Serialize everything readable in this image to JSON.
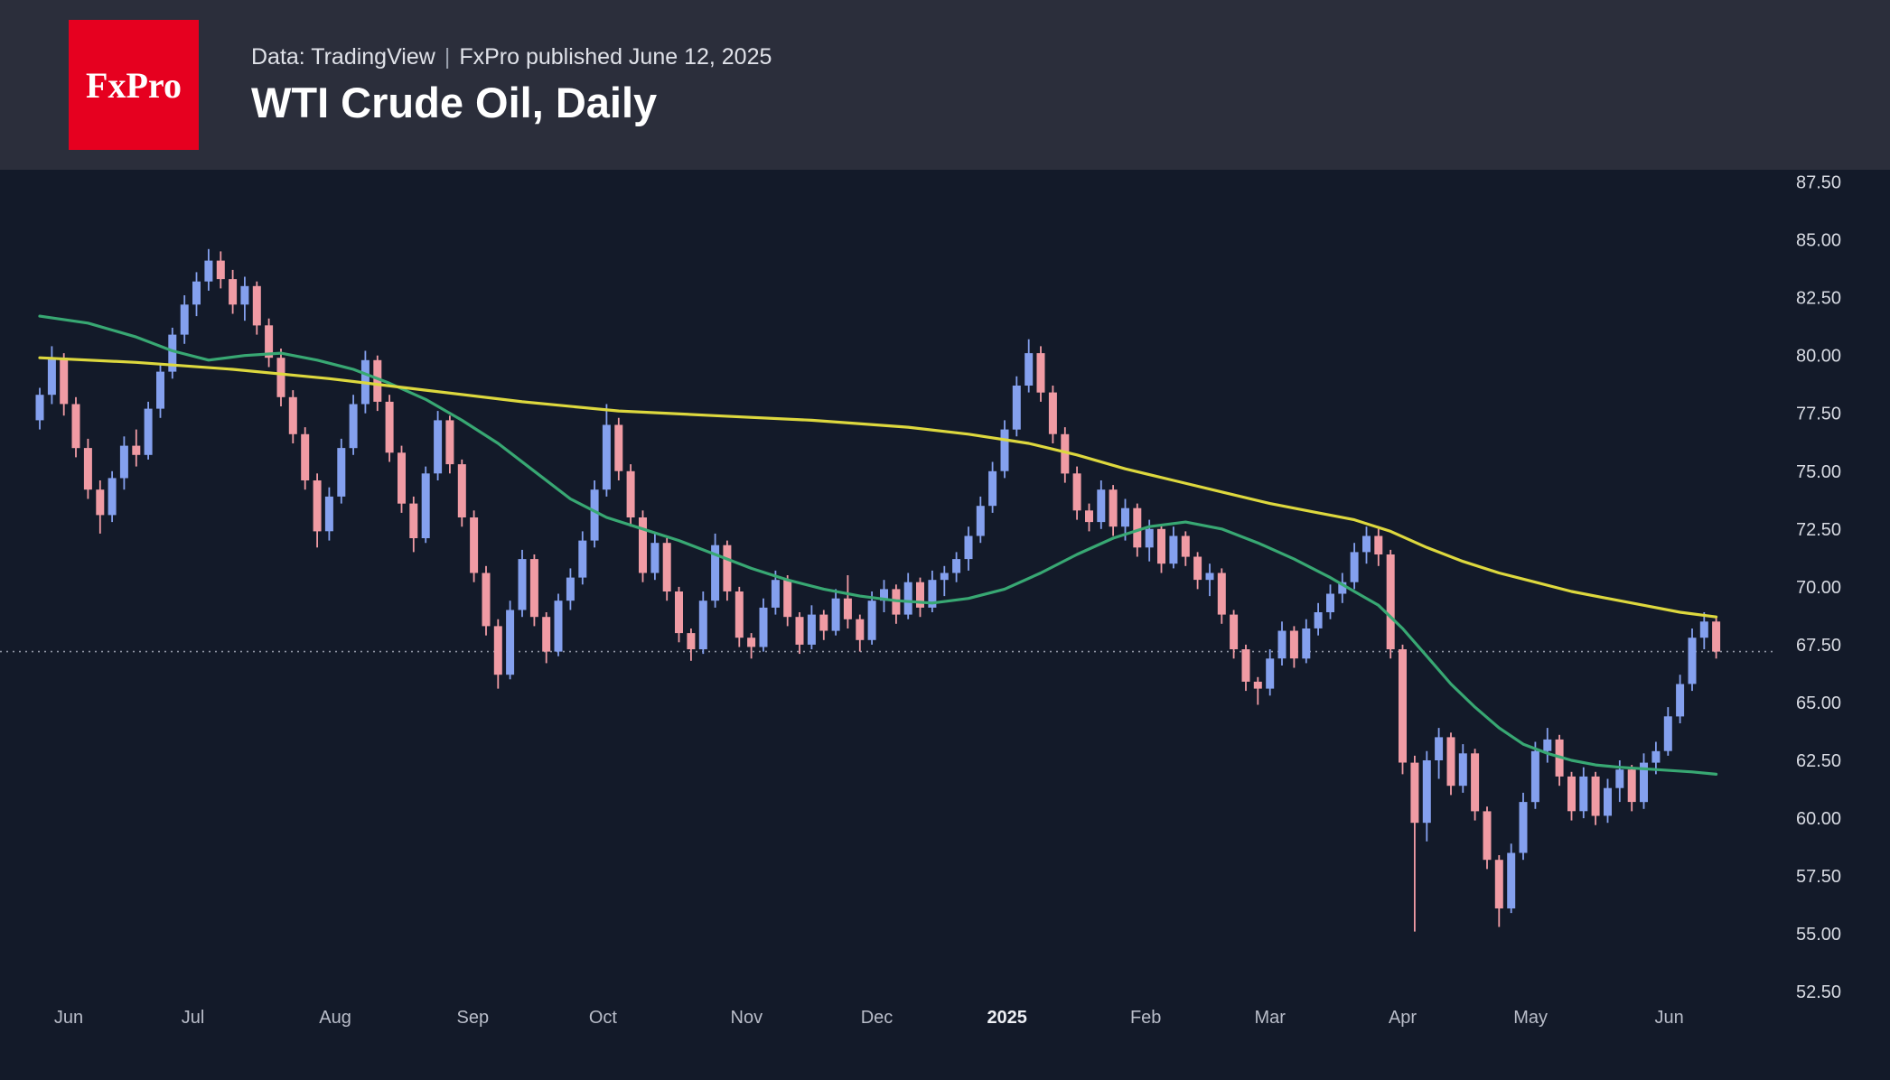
{
  "header": {
    "logo_text": "FxPro",
    "subtitle_source": "Data: TradingView",
    "subtitle_separator": "|",
    "subtitle_published": "FxPro published June 12, 2025",
    "title": "WTI Crude Oil, Daily"
  },
  "colors": {
    "header_bg": "#2b2e3b",
    "chart_bg": "#131a29",
    "logo_bg": "#e6001f",
    "candle_up": "#84a0ee",
    "candle_down": "#f09ba4",
    "ma_fast": "#38a873",
    "ma_slow": "#ddd83e",
    "last_price_line": "#8f94a3",
    "axis_text": "#d8dbe3",
    "time_text": "#b9bdc9",
    "time_text_emphasis": "#eef0f5"
  },
  "chart_data": {
    "type": "candlestick",
    "symbol": "WTI Crude Oil",
    "timeframe": "Daily",
    "title": "WTI Crude Oil, Daily",
    "ylim": [
      51.5,
      88.1
    ],
    "grid": false,
    "legend": false,
    "y_ticks": [
      "87.50",
      "85.00",
      "82.50",
      "80.00",
      "77.50",
      "75.00",
      "72.50",
      "70.00",
      "67.50",
      "65.00",
      "62.50",
      "60.00",
      "57.50",
      "55.00",
      "52.50"
    ],
    "x_ticks": [
      {
        "label": "Jun",
        "i": 2.4
      },
      {
        "label": "Jul",
        "i": 12.7
      },
      {
        "label": "Aug",
        "i": 24.5
      },
      {
        "label": "Sep",
        "i": 35.9
      },
      {
        "label": "Oct",
        "i": 46.7
      },
      {
        "label": "Nov",
        "i": 58.6
      },
      {
        "label": "Dec",
        "i": 69.4
      },
      {
        "label": "2025",
        "i": 80.2,
        "emphasis": true
      },
      {
        "label": "Feb",
        "i": 91.7
      },
      {
        "label": "Mar",
        "i": 102.0
      },
      {
        "label": "Apr",
        "i": 113.0
      },
      {
        "label": "May",
        "i": 123.6
      },
      {
        "label": "Jun",
        "i": 135.1
      }
    ],
    "last_price": 67.2,
    "ohlc": [
      [
        77.2,
        78.6,
        76.8,
        78.3
      ],
      [
        78.3,
        80.4,
        77.9,
        79.9
      ],
      [
        79.9,
        80.1,
        77.4,
        77.9
      ],
      [
        77.9,
        78.2,
        75.6,
        76.0
      ],
      [
        76.0,
        76.4,
        73.8,
        74.2
      ],
      [
        74.2,
        74.6,
        72.3,
        73.1
      ],
      [
        73.1,
        75.0,
        72.8,
        74.7
      ],
      [
        74.7,
        76.5,
        74.2,
        76.1
      ],
      [
        76.1,
        76.8,
        75.2,
        75.7
      ],
      [
        75.7,
        78.0,
        75.5,
        77.7
      ],
      [
        77.7,
        79.6,
        77.3,
        79.3
      ],
      [
        79.3,
        81.2,
        79.0,
        80.9
      ],
      [
        80.9,
        82.6,
        80.5,
        82.2
      ],
      [
        82.2,
        83.6,
        81.7,
        83.2
      ],
      [
        83.2,
        84.6,
        82.8,
        84.1
      ],
      [
        84.1,
        84.5,
        82.9,
        83.3
      ],
      [
        83.3,
        83.7,
        81.8,
        82.2
      ],
      [
        82.2,
        83.4,
        81.5,
        83.0
      ],
      [
        83.0,
        83.2,
        80.9,
        81.3
      ],
      [
        81.3,
        81.6,
        79.5,
        79.9
      ],
      [
        79.9,
        80.3,
        77.8,
        78.2
      ],
      [
        78.2,
        78.5,
        76.2,
        76.6
      ],
      [
        76.6,
        76.9,
        74.2,
        74.6
      ],
      [
        74.6,
        74.9,
        71.7,
        72.4
      ],
      [
        72.4,
        74.3,
        72.0,
        73.9
      ],
      [
        73.9,
        76.4,
        73.6,
        76.0
      ],
      [
        76.0,
        78.3,
        75.7,
        77.9
      ],
      [
        77.9,
        80.2,
        77.5,
        79.8
      ],
      [
        79.8,
        80.0,
        77.6,
        78.0
      ],
      [
        78.0,
        78.3,
        75.4,
        75.8
      ],
      [
        75.8,
        76.1,
        73.2,
        73.6
      ],
      [
        73.6,
        73.9,
        71.5,
        72.1
      ],
      [
        72.1,
        75.2,
        71.9,
        74.9
      ],
      [
        74.9,
        77.6,
        74.6,
        77.2
      ],
      [
        77.2,
        77.4,
        74.9,
        75.3
      ],
      [
        75.3,
        75.5,
        72.6,
        73.0
      ],
      [
        73.0,
        73.3,
        70.2,
        70.6
      ],
      [
        70.6,
        70.9,
        67.9,
        68.3
      ],
      [
        68.3,
        68.6,
        65.6,
        66.2
      ],
      [
        66.2,
        69.4,
        66.0,
        69.0
      ],
      [
        69.0,
        71.6,
        68.7,
        71.2
      ],
      [
        71.2,
        71.4,
        68.3,
        68.7
      ],
      [
        68.7,
        68.9,
        66.7,
        67.2
      ],
      [
        67.2,
        69.7,
        67.0,
        69.4
      ],
      [
        69.4,
        70.8,
        69.0,
        70.4
      ],
      [
        70.4,
        72.4,
        70.1,
        72.0
      ],
      [
        72.0,
        74.6,
        71.7,
        74.2
      ],
      [
        74.2,
        77.9,
        73.9,
        77.0
      ],
      [
        77.0,
        77.3,
        74.6,
        75.0
      ],
      [
        75.0,
        75.3,
        72.6,
        73.0
      ],
      [
        73.0,
        73.3,
        70.2,
        70.6
      ],
      [
        70.6,
        72.3,
        70.3,
        71.9
      ],
      [
        71.9,
        72.1,
        69.4,
        69.8
      ],
      [
        69.8,
        70.0,
        67.6,
        68.0
      ],
      [
        68.0,
        68.2,
        66.8,
        67.3
      ],
      [
        67.3,
        69.8,
        67.1,
        69.4
      ],
      [
        69.4,
        72.3,
        69.1,
        71.8
      ],
      [
        71.8,
        72.0,
        69.4,
        69.8
      ],
      [
        69.8,
        70.0,
        67.4,
        67.8
      ],
      [
        67.8,
        68.0,
        66.9,
        67.4
      ],
      [
        67.4,
        69.5,
        67.2,
        69.1
      ],
      [
        69.1,
        70.7,
        68.8,
        70.3
      ],
      [
        70.3,
        70.5,
        68.3,
        68.7
      ],
      [
        68.7,
        68.9,
        67.1,
        67.5
      ],
      [
        67.5,
        69.2,
        67.3,
        68.8
      ],
      [
        68.8,
        69.0,
        67.7,
        68.1
      ],
      [
        68.1,
        69.9,
        67.9,
        69.5
      ],
      [
        69.5,
        70.5,
        68.2,
        68.6
      ],
      [
        68.6,
        68.8,
        67.2,
        67.7
      ],
      [
        67.7,
        69.8,
        67.5,
        69.4
      ],
      [
        69.4,
        70.3,
        68.9,
        69.9
      ],
      [
        69.9,
        70.1,
        68.4,
        68.8
      ],
      [
        68.8,
        70.6,
        68.6,
        70.2
      ],
      [
        70.2,
        70.4,
        68.7,
        69.1
      ],
      [
        69.1,
        70.7,
        68.9,
        70.3
      ],
      [
        70.3,
        70.9,
        69.6,
        70.6
      ],
      [
        70.6,
        71.5,
        70.2,
        71.2
      ],
      [
        71.2,
        72.6,
        70.7,
        72.2
      ],
      [
        72.2,
        73.9,
        71.9,
        73.5
      ],
      [
        73.5,
        75.4,
        73.2,
        75.0
      ],
      [
        75.0,
        77.2,
        74.7,
        76.8
      ],
      [
        76.8,
        79.1,
        76.5,
        78.7
      ],
      [
        78.7,
        80.7,
        78.4,
        80.1
      ],
      [
        80.1,
        80.4,
        78.0,
        78.4
      ],
      [
        78.4,
        78.7,
        76.2,
        76.6
      ],
      [
        76.6,
        76.9,
        74.5,
        74.9
      ],
      [
        74.9,
        75.2,
        72.9,
        73.3
      ],
      [
        73.3,
        73.6,
        72.4,
        72.8
      ],
      [
        72.8,
        74.6,
        72.5,
        74.2
      ],
      [
        74.2,
        74.4,
        72.2,
        72.6
      ],
      [
        72.6,
        73.8,
        72.0,
        73.4
      ],
      [
        73.4,
        73.6,
        71.3,
        71.7
      ],
      [
        71.7,
        72.9,
        71.1,
        72.5
      ],
      [
        72.5,
        72.7,
        70.6,
        71.0
      ],
      [
        71.0,
        72.6,
        70.8,
        72.2
      ],
      [
        72.2,
        72.4,
        70.9,
        71.3
      ],
      [
        71.3,
        71.5,
        69.9,
        70.3
      ],
      [
        70.3,
        71.0,
        69.6,
        70.6
      ],
      [
        70.6,
        70.8,
        68.4,
        68.8
      ],
      [
        68.8,
        69.0,
        66.9,
        67.3
      ],
      [
        67.3,
        67.5,
        65.5,
        65.9
      ],
      [
        65.9,
        66.1,
        64.9,
        65.6
      ],
      [
        65.6,
        67.3,
        65.3,
        66.9
      ],
      [
        66.9,
        68.5,
        66.6,
        68.1
      ],
      [
        68.1,
        68.3,
        66.5,
        66.9
      ],
      [
        66.9,
        68.6,
        66.7,
        68.2
      ],
      [
        68.2,
        69.3,
        67.9,
        68.9
      ],
      [
        68.9,
        70.1,
        68.6,
        69.7
      ],
      [
        69.7,
        70.6,
        69.3,
        70.2
      ],
      [
        70.2,
        71.9,
        69.9,
        71.5
      ],
      [
        71.5,
        72.6,
        71.0,
        72.2
      ],
      [
        72.2,
        72.5,
        70.9,
        71.4
      ],
      [
        71.4,
        71.6,
        66.9,
        67.3
      ],
      [
        67.3,
        67.5,
        61.9,
        62.4
      ],
      [
        62.4,
        62.7,
        55.1,
        59.8
      ],
      [
        59.8,
        62.9,
        59.0,
        62.5
      ],
      [
        62.5,
        63.9,
        61.7,
        63.5
      ],
      [
        63.5,
        63.7,
        61.0,
        61.4
      ],
      [
        61.4,
        63.2,
        61.1,
        62.8
      ],
      [
        62.8,
        63.0,
        59.9,
        60.3
      ],
      [
        60.3,
        60.5,
        57.8,
        58.2
      ],
      [
        58.2,
        58.4,
        55.3,
        56.1
      ],
      [
        56.1,
        58.9,
        55.9,
        58.5
      ],
      [
        58.5,
        61.1,
        58.2,
        60.7
      ],
      [
        60.7,
        63.3,
        60.4,
        62.9
      ],
      [
        62.9,
        63.9,
        62.4,
        63.4
      ],
      [
        63.4,
        63.6,
        61.4,
        61.8
      ],
      [
        61.8,
        62.0,
        59.9,
        60.3
      ],
      [
        60.3,
        62.2,
        60.0,
        61.8
      ],
      [
        61.8,
        62.0,
        59.7,
        60.1
      ],
      [
        60.1,
        61.7,
        59.8,
        61.3
      ],
      [
        61.3,
        62.5,
        60.7,
        62.1
      ],
      [
        62.1,
        62.3,
        60.3,
        60.7
      ],
      [
        60.7,
        62.8,
        60.4,
        62.4
      ],
      [
        62.4,
        63.3,
        61.9,
        62.9
      ],
      [
        62.9,
        64.8,
        62.7,
        64.4
      ],
      [
        64.4,
        66.2,
        64.1,
        65.8
      ],
      [
        65.8,
        68.2,
        65.5,
        67.8
      ],
      [
        67.8,
        68.9,
        67.3,
        68.5
      ],
      [
        68.5,
        68.7,
        66.9,
        67.2
      ]
    ],
    "overlays": [
      {
        "id": "ma-green",
        "name": "Fast moving average (green)",
        "color_key": "ma_fast",
        "points": [
          [
            0,
            81.7
          ],
          [
            4,
            81.4
          ],
          [
            8,
            80.8
          ],
          [
            11,
            80.2
          ],
          [
            14,
            79.8
          ],
          [
            17,
            80.0
          ],
          [
            20,
            80.1
          ],
          [
            23,
            79.8
          ],
          [
            26,
            79.4
          ],
          [
            29,
            78.8
          ],
          [
            32,
            78.1
          ],
          [
            35,
            77.2
          ],
          [
            38,
            76.2
          ],
          [
            41,
            75.0
          ],
          [
            44,
            73.8
          ],
          [
            47,
            73.0
          ],
          [
            50,
            72.5
          ],
          [
            53,
            72.0
          ],
          [
            56,
            71.4
          ],
          [
            59,
            70.8
          ],
          [
            62,
            70.3
          ],
          [
            65,
            69.9
          ],
          [
            68,
            69.6
          ],
          [
            71,
            69.4
          ],
          [
            74,
            69.3
          ],
          [
            77,
            69.5
          ],
          [
            80,
            69.9
          ],
          [
            83,
            70.6
          ],
          [
            86,
            71.4
          ],
          [
            89,
            72.1
          ],
          [
            92,
            72.6
          ],
          [
            95,
            72.8
          ],
          [
            98,
            72.5
          ],
          [
            101,
            71.9
          ],
          [
            104,
            71.2
          ],
          [
            107,
            70.4
          ],
          [
            109,
            69.8
          ],
          [
            111,
            69.2
          ],
          [
            113,
            68.2
          ],
          [
            115,
            67.0
          ],
          [
            117,
            65.8
          ],
          [
            119,
            64.8
          ],
          [
            121,
            63.9
          ],
          [
            123,
            63.2
          ],
          [
            125,
            62.8
          ],
          [
            127,
            62.5
          ],
          [
            129,
            62.3
          ],
          [
            131,
            62.2
          ],
          [
            134,
            62.1
          ],
          [
            137,
            62.0
          ],
          [
            139,
            61.9
          ]
        ]
      },
      {
        "id": "ma-yellow",
        "name": "Slow moving average (yellow)",
        "color_key": "ma_slow",
        "points": [
          [
            0,
            79.9
          ],
          [
            8,
            79.7
          ],
          [
            16,
            79.4
          ],
          [
            24,
            79.0
          ],
          [
            32,
            78.5
          ],
          [
            40,
            78.0
          ],
          [
            48,
            77.6
          ],
          [
            56,
            77.4
          ],
          [
            64,
            77.2
          ],
          [
            72,
            76.9
          ],
          [
            77,
            76.6
          ],
          [
            82,
            76.2
          ],
          [
            86,
            75.7
          ],
          [
            90,
            75.1
          ],
          [
            94,
            74.6
          ],
          [
            98,
            74.1
          ],
          [
            102,
            73.6
          ],
          [
            106,
            73.2
          ],
          [
            109,
            72.9
          ],
          [
            112,
            72.4
          ],
          [
            115,
            71.7
          ],
          [
            118,
            71.1
          ],
          [
            121,
            70.6
          ],
          [
            124,
            70.2
          ],
          [
            127,
            69.8
          ],
          [
            130,
            69.5
          ],
          [
            133,
            69.2
          ],
          [
            136,
            68.9
          ],
          [
            139,
            68.7
          ]
        ]
      }
    ]
  }
}
